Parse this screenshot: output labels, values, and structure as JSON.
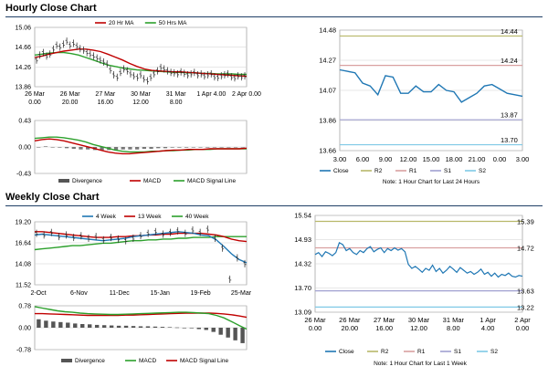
{
  "sections": {
    "hourly_title": "Hourly Close Chart",
    "weekly_title": "Weekly Close Chart"
  },
  "colors": {
    "ma_short": "#c00000",
    "ma_long": "#2ca02c",
    "close": "#1f77b4",
    "r2": "#b8b86a",
    "r1": "#d9a0a0",
    "s1": "#a0a0d0",
    "s2": "#7fc9e6",
    "hist": "#777777"
  },
  "chart_data": [
    {
      "id": "hourly-price",
      "type": "line",
      "legend": [
        "20 Hr MA",
        "50 Hrs MA"
      ],
      "ylim": [
        13.86,
        15.06
      ],
      "y_ticks": [
        "15.06",
        "14.66",
        "14.26",
        "13.86"
      ],
      "x_ticks": [
        [
          "26 Mar",
          "0.00"
        ],
        [
          "26 Mar",
          "20.00"
        ],
        [
          "27 Mar",
          "16.00"
        ],
        [
          "30 Mar",
          "12.00"
        ],
        [
          "31 Mar",
          "8.00"
        ],
        [
          "1 Apr 4.00",
          ""
        ],
        [
          "2 Apr 0.00",
          ""
        ]
      ],
      "price": [
        14.4,
        14.5,
        14.55,
        14.48,
        14.52,
        14.62,
        14.7,
        14.66,
        14.72,
        14.78,
        14.7,
        14.74,
        14.68,
        14.63,
        14.6,
        14.55,
        14.52,
        14.48,
        14.44,
        14.4,
        14.36,
        14.32,
        14.2,
        14.1,
        14.05,
        14.15,
        14.22,
        14.18,
        14.12,
        14.08,
        14.05,
        14.1,
        14.02,
        13.98,
        14.05,
        14.12,
        14.18,
        14.25,
        14.22,
        14.18,
        14.15,
        14.14,
        14.12,
        14.16,
        14.13,
        14.1,
        14.12,
        14.15,
        14.1,
        14.12,
        14.08,
        14.1,
        14.12,
        14.06,
        14.05,
        14.08,
        14.1,
        14.12,
        14.06,
        14.04,
        14.08,
        14.06,
        14.08
      ],
      "ma_short": [
        14.45,
        14.48,
        14.52,
        14.55,
        14.58,
        14.6,
        14.62,
        14.62,
        14.6,
        14.57,
        14.52,
        14.46,
        14.4,
        14.33,
        14.27,
        14.22,
        14.19,
        14.18,
        14.17,
        14.16,
        14.16,
        14.15,
        14.14,
        14.13,
        14.12,
        14.11,
        14.1,
        14.09,
        14.08,
        14.07
      ],
      "ma_long": [
        14.5,
        14.52,
        14.54,
        14.55,
        14.55,
        14.53,
        14.5,
        14.45,
        14.4,
        14.35,
        14.3,
        14.27,
        14.24,
        14.22,
        14.2,
        14.19,
        14.18,
        14.17,
        14.16,
        14.15,
        14.15,
        14.14,
        14.14,
        14.13,
        14.13,
        14.12,
        14.12,
        14.12,
        14.11,
        14.11
      ]
    },
    {
      "id": "hourly-macd",
      "type": "line",
      "legend": [
        "Divergence",
        "MACD",
        "MACD Signal Line"
      ],
      "ylim": [
        -0.43,
        0.43
      ],
      "y_ticks": [
        "0.43",
        "0.00",
        "-0.43"
      ],
      "hist": [
        0.0,
        0.01,
        0.0,
        -0.01,
        -0.02,
        -0.03,
        -0.04,
        -0.04,
        -0.05,
        -0.05,
        -0.05,
        -0.05,
        -0.04,
        -0.04,
        -0.04,
        -0.03,
        -0.03,
        -0.02,
        -0.02,
        -0.01,
        -0.01,
        -0.01,
        0.0,
        0.0,
        0.0,
        0.0,
        0.0,
        0.0,
        0.0,
        0.0
      ],
      "macd": [
        0.1,
        0.12,
        0.13,
        0.12,
        0.1,
        0.07,
        0.04,
        0.01,
        -0.02,
        -0.05,
        -0.08,
        -0.1,
        -0.11,
        -0.11,
        -0.1,
        -0.09,
        -0.08,
        -0.07,
        -0.06,
        -0.05,
        -0.05,
        -0.04,
        -0.04,
        -0.04,
        -0.03,
        -0.03,
        -0.03,
        -0.03,
        -0.03,
        -0.02
      ],
      "signal": [
        0.14,
        0.15,
        0.16,
        0.16,
        0.15,
        0.13,
        0.11,
        0.08,
        0.04,
        0.01,
        -0.02,
        -0.05,
        -0.07,
        -0.08,
        -0.08,
        -0.08,
        -0.07,
        -0.07,
        -0.06,
        -0.06,
        -0.05,
        -0.05,
        -0.04,
        -0.04,
        -0.04,
        -0.03,
        -0.03,
        -0.03,
        -0.03,
        -0.03
      ]
    },
    {
      "id": "hourly-close",
      "type": "line",
      "ylim": [
        13.66,
        14.48
      ],
      "y_ticks": [
        "14.48",
        "14.27",
        "14.07",
        "13.86",
        "13.66"
      ],
      "x_ticks": [
        "3.00",
        "6.00",
        "9.00",
        "12.00",
        "15.00",
        "18.00",
        "21.00",
        "0.00",
        "3.00"
      ],
      "levels": {
        "R2": 14.44,
        "R1": 14.24,
        "S1": 13.87,
        "S2": 13.7
      },
      "level_labels": [
        "14.44",
        "14.24",
        "13.87",
        "13.70"
      ],
      "legend": [
        "Close",
        "R2",
        "R1",
        "S1",
        "S2"
      ],
      "note": "Note: 1 Hour Chart for Last 24 Hours",
      "close": [
        14.21,
        14.2,
        14.19,
        14.12,
        14.1,
        14.04,
        14.17,
        14.16,
        14.05,
        14.05,
        14.1,
        14.06,
        14.06,
        14.11,
        14.07,
        14.06,
        13.99,
        14.02,
        14.05,
        14.1,
        14.11,
        14.08,
        14.05,
        14.04,
        14.03
      ]
    },
    {
      "id": "weekly-price",
      "type": "line",
      "legend": [
        "4 Week",
        "13 Week",
        "40 Week"
      ],
      "ylim": [
        11.52,
        19.2
      ],
      "y_ticks": [
        "19.20",
        "16.64",
        "14.08",
        "11.52"
      ],
      "x_ticks": [
        "2-Oct",
        "6-Nov",
        "11-Dec",
        "15-Jan",
        "19-Feb",
        "25-Mar"
      ],
      "price": [
        17.8,
        17.6,
        17.9,
        17.4,
        17.6,
        17.3,
        17.5,
        17.2,
        17.4,
        17.0,
        17.3,
        17.1,
        16.9,
        17.2,
        17.5,
        17.8,
        18.0,
        17.7,
        17.9,
        18.1,
        17.8,
        18.2,
        17.9,
        18.3,
        17.2,
        16.0,
        12.2,
        14.8,
        14.1
      ],
      "ma4": [
        17.6,
        17.7,
        17.6,
        17.5,
        17.4,
        17.3,
        17.2,
        17.1,
        17.0,
        16.9,
        17.0,
        17.1,
        17.2,
        17.4,
        17.5,
        17.6,
        17.7,
        17.8,
        17.9,
        18.0,
        17.9,
        17.8,
        17.6,
        17.5,
        17.0,
        16.2,
        15.3,
        14.6,
        14.2
      ],
      "ma13": [
        18.0,
        18.0,
        17.9,
        17.8,
        17.7,
        17.6,
        17.5,
        17.4,
        17.3,
        17.3,
        17.3,
        17.4,
        17.4,
        17.5,
        17.5,
        17.6,
        17.6,
        17.7,
        17.7,
        17.8,
        17.8,
        17.8,
        17.8,
        17.7,
        17.6,
        17.4,
        17.1,
        16.9,
        16.8
      ],
      "ma40": [
        15.8,
        15.9,
        16.0,
        16.1,
        16.2,
        16.3,
        16.3,
        16.4,
        16.5,
        16.6,
        16.6,
        16.7,
        16.8,
        16.9,
        16.9,
        17.0,
        17.0,
        17.1,
        17.1,
        17.2,
        17.2,
        17.3,
        17.3,
        17.3,
        17.4,
        17.4,
        17.4,
        17.4,
        17.4
      ]
    },
    {
      "id": "weekly-macd",
      "type": "line",
      "legend": [
        "Divergence",
        "MACD",
        "MACD Signal Line"
      ],
      "ylim": [
        -0.78,
        0.78
      ],
      "y_ticks": [
        "0.78",
        "0.00",
        "-0.78"
      ],
      "hist": [
        0.3,
        0.25,
        0.22,
        0.2,
        0.18,
        0.15,
        0.13,
        0.12,
        0.1,
        0.09,
        0.08,
        0.07,
        0.07,
        0.06,
        0.05,
        0.05,
        0.04,
        0.03,
        0.02,
        0.01,
        0.0,
        -0.02,
        -0.05,
        -0.08,
        -0.15,
        -0.25,
        -0.35,
        -0.45,
        -0.55
      ],
      "macd": [
        0.75,
        0.7,
        0.65,
        0.6,
        0.57,
        0.55,
        0.52,
        0.5,
        0.49,
        0.48,
        0.47,
        0.47,
        0.48,
        0.49,
        0.5,
        0.51,
        0.52,
        0.53,
        0.54,
        0.55,
        0.55,
        0.54,
        0.52,
        0.5,
        0.44,
        0.35,
        0.22,
        0.08,
        -0.05
      ],
      "signal": [
        0.5,
        0.5,
        0.49,
        0.48,
        0.47,
        0.46,
        0.45,
        0.44,
        0.44,
        0.44,
        0.44,
        0.44,
        0.45,
        0.45,
        0.46,
        0.47,
        0.48,
        0.49,
        0.5,
        0.51,
        0.52,
        0.52,
        0.52,
        0.52,
        0.51,
        0.49,
        0.46,
        0.42,
        0.37
      ]
    },
    {
      "id": "weekly-close",
      "type": "line",
      "ylim": [
        13.09,
        15.54
      ],
      "y_ticks": [
        "15.54",
        "14.93",
        "14.32",
        "13.70",
        "13.09"
      ],
      "x_ticks": [
        [
          "26 Mar",
          "0.00"
        ],
        [
          "26 Mar",
          "20.00"
        ],
        [
          "27 Mar",
          "16.00"
        ],
        [
          "30 Mar",
          "12.00"
        ],
        [
          "31 Mar",
          "8.00"
        ],
        [
          "1 Apr",
          "4.00"
        ],
        [
          "2 Apr",
          "0.00"
        ]
      ],
      "levels": {
        "R2": 15.39,
        "R1": 14.72,
        "S1": 13.63,
        "S2": 13.22
      },
      "level_labels": [
        "15.39",
        "14.72",
        "13.63",
        "13.22"
      ],
      "legend": [
        "Close",
        "R2",
        "R1",
        "S1",
        "S2"
      ],
      "note": "Note: 1 Hour Chart for Last 1 Week",
      "close": [
        14.55,
        14.6,
        14.5,
        14.62,
        14.58,
        14.52,
        14.6,
        14.85,
        14.8,
        14.65,
        14.7,
        14.6,
        14.55,
        14.65,
        14.6,
        14.7,
        14.75,
        14.62,
        14.68,
        14.72,
        14.6,
        14.7,
        14.65,
        14.72,
        14.66,
        14.7,
        14.62,
        14.3,
        14.2,
        14.25,
        14.18,
        14.1,
        14.2,
        14.15,
        14.28,
        14.12,
        14.2,
        14.08,
        14.15,
        14.25,
        14.18,
        14.1,
        14.22,
        14.15,
        14.08,
        14.12,
        14.05,
        14.1,
        14.18,
        14.05,
        14.1,
        14.0,
        14.08,
        13.98,
        14.05,
        14.02,
        14.08,
        14.0,
        13.98,
        14.02,
        14.0
      ]
    }
  ]
}
